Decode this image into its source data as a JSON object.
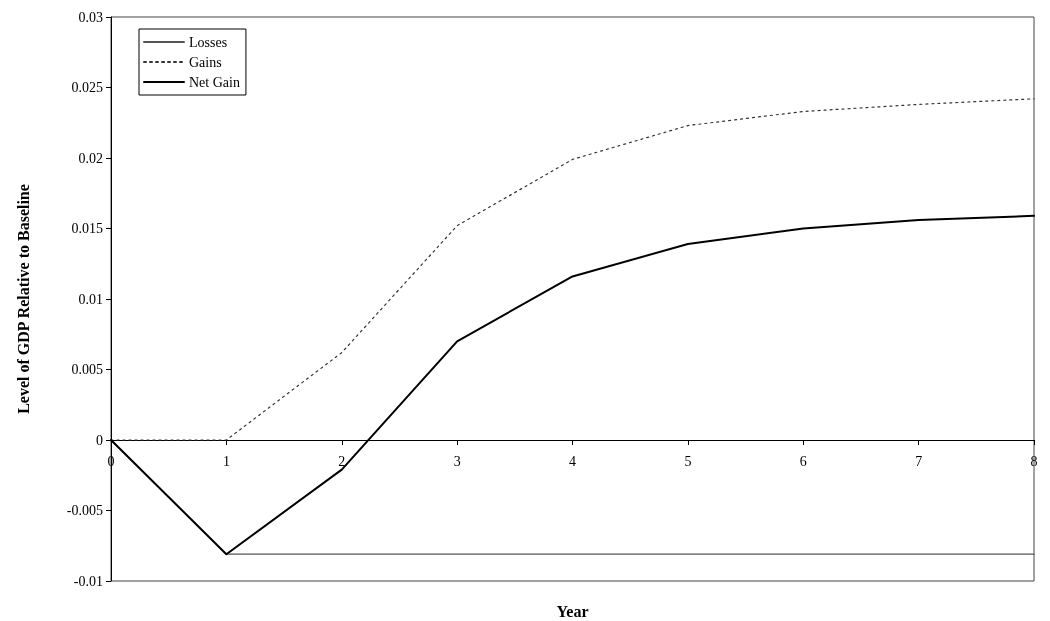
{
  "chart_data": {
    "type": "line",
    "xlabel": "Year",
    "ylabel": "Level of GDP Relative to Baseline",
    "categories": [
      "0",
      "1",
      "2",
      "3",
      "4",
      "5",
      "6",
      "7",
      "8"
    ],
    "series": [
      {
        "name": "Losses",
        "color": "#555555",
        "line_style": "solid",
        "values": [
          0,
          -0.0081,
          -0.0081,
          -0.0081,
          -0.0081,
          -0.0081,
          -0.0081,
          -0.0081,
          -0.0081
        ]
      },
      {
        "name": "Gains",
        "color": "#333333",
        "line_style": "dotted",
        "values": [
          0,
          0,
          0.0062,
          0.0152,
          0.0199,
          0.0223,
          0.0233,
          0.0238,
          0.0242
        ]
      },
      {
        "name": "Net Gain",
        "color": "#000000",
        "line_style": "solid",
        "values": [
          0,
          -0.0081,
          -0.0021,
          0.007,
          0.0116,
          0.0139,
          0.015,
          0.0156,
          0.0159
        ]
      }
    ],
    "ylim": [
      -0.01,
      0.03
    ],
    "yticks": [
      -0.01,
      -0.005,
      0,
      0.005,
      0.01,
      0.015,
      0.02,
      0.025,
      0.03
    ],
    "legend": "top left",
    "marker": "none"
  }
}
